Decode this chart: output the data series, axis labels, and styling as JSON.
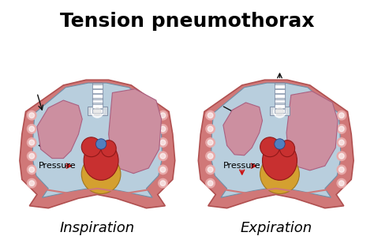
{
  "title": "Tension pneumothorax",
  "title_fontsize": 18,
  "title_fontweight": "bold",
  "label_left": "Inspiration",
  "label_right": "Expiration",
  "label_fontsize": 13,
  "bg_color": "#ffffff",
  "lung_blue": "#b8cedd",
  "lung_pink": "#cc8fa0",
  "chest_wall_pink": "#d07878",
  "chest_wall_edge": "#b05050",
  "rib_dot": "#e8aaaa",
  "heart_red": "#c83030",
  "heart_dark": "#901818",
  "heart_yellow": "#d4a030",
  "heart_yellow_dark": "#a07820",
  "trachea_light": "#d0d8e0",
  "trachea_dark": "#8090a8",
  "arrow_black": "#111111",
  "arrow_red": "#cc1111",
  "pressure_text": "Pressure",
  "pressure_fontsize": 8,
  "diaphragm_pink": "#d07878",
  "blue_outline": "#7090a8"
}
